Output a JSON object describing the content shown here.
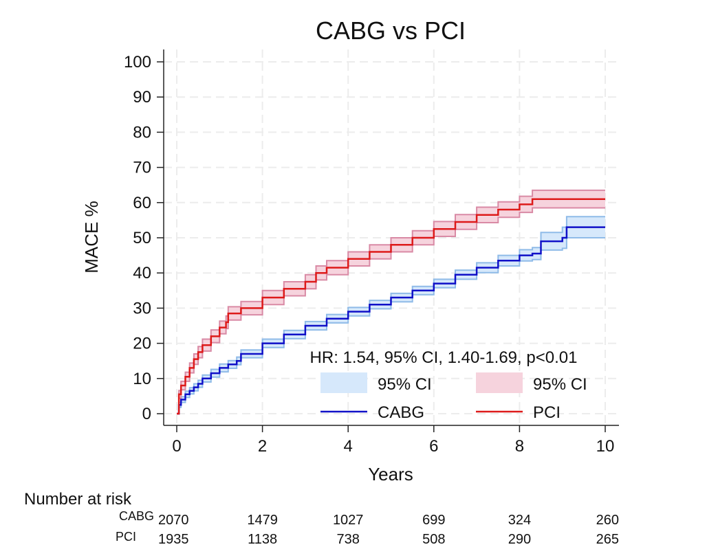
{
  "chart_data": {
    "type": "kaplan-meier",
    "title": "CABG vs PCI",
    "xlabel": "Years",
    "ylabel": "MACE %",
    "xlim": [
      0,
      10
    ],
    "ylim": [
      0,
      100
    ],
    "x_ticks": [
      0,
      2,
      4,
      6,
      8,
      10
    ],
    "y_ticks": [
      0,
      10,
      20,
      30,
      40,
      50,
      60,
      70,
      80,
      90,
      100
    ],
    "grid": true,
    "annotation": "HR: 1.54, 95% CI, 1.40-1.69, p<0.01",
    "legend": {
      "position": "bottom-right",
      "entries": [
        {
          "label": "95% CI",
          "kind": "band",
          "color": "#d6e8fb"
        },
        {
          "label": "95% CI",
          "kind": "band",
          "color": "#f6d3dd"
        },
        {
          "label": "CABG",
          "kind": "line",
          "color": "#1010c8"
        },
        {
          "label": "PCI",
          "kind": "line",
          "color": "#dd1a1a"
        }
      ]
    },
    "series": [
      {
        "name": "CABG",
        "color": "#1010c8",
        "band_color": "#d6e8fb",
        "band_edge_color": "#8fbbe8",
        "x": [
          0,
          0.05,
          0.1,
          0.2,
          0.3,
          0.4,
          0.5,
          0.6,
          0.8,
          1.0,
          1.2,
          1.4,
          1.5,
          2.0,
          2.5,
          3.0,
          3.5,
          4.0,
          4.5,
          5.0,
          5.5,
          6.0,
          6.5,
          7.0,
          7.5,
          8.0,
          8.3,
          8.5,
          9.0,
          9.1,
          10.0
        ],
        "y": [
          0,
          2.5,
          4,
          5.5,
          6.5,
          7.5,
          8.5,
          10,
          11.5,
          13,
          14,
          15,
          17,
          20,
          22.5,
          25,
          27,
          29,
          31,
          33,
          35,
          37,
          39.5,
          41.5,
          43.5,
          45,
          45.5,
          49,
          50,
          53,
          53
        ],
        "ci_low": [
          0,
          1.8,
          3.2,
          4.6,
          5.6,
          6.5,
          7.5,
          9,
          10.4,
          11.9,
          12.9,
          13.9,
          15.9,
          18.8,
          21.3,
          23.8,
          25.8,
          27.8,
          29.8,
          31.8,
          33.8,
          35.8,
          38.2,
          40.1,
          42,
          43.4,
          43.8,
          46.5,
          47,
          50,
          50
        ],
        "ci_high": [
          0,
          3.2,
          4.8,
          6.4,
          7.4,
          8.5,
          9.5,
          11,
          12.6,
          14.1,
          15.1,
          16.1,
          18.1,
          21.2,
          23.7,
          26.2,
          28.2,
          30.2,
          32.2,
          34.2,
          36.2,
          38.2,
          40.8,
          42.9,
          45,
          46.6,
          47.2,
          51.5,
          53,
          56,
          56
        ]
      },
      {
        "name": "PCI",
        "color": "#dd1a1a",
        "band_color": "#f6d3dd",
        "band_edge_color": "#d98aa5",
        "x": [
          0,
          0.05,
          0.1,
          0.2,
          0.3,
          0.4,
          0.5,
          0.6,
          0.8,
          1.0,
          1.15,
          1.2,
          1.5,
          2.0,
          2.5,
          3.0,
          3.25,
          3.5,
          4.0,
          4.5,
          5.0,
          5.5,
          6.0,
          6.5,
          7.0,
          7.5,
          8.0,
          8.3,
          10.0
        ],
        "y": [
          0,
          5.5,
          8,
          10.5,
          13,
          15.5,
          17.5,
          19.5,
          22,
          24.5,
          26,
          28.5,
          30,
          33,
          35.5,
          37.5,
          40,
          41.5,
          44,
          46,
          48,
          50,
          52.5,
          54.5,
          56.5,
          58,
          59.5,
          61,
          61
        ],
        "ci_low": [
          0,
          4.4,
          6.8,
          9.2,
          11.6,
          14.0,
          15.9,
          17.8,
          20.2,
          22.7,
          24.2,
          26.6,
          28.1,
          31.0,
          33.5,
          35.5,
          38.0,
          39.5,
          42.0,
          44.0,
          46.0,
          48.0,
          50.4,
          52.4,
          54.3,
          55.8,
          57.2,
          58.5,
          58.5
        ],
        "ci_high": [
          0,
          6.6,
          9.2,
          11.8,
          14.4,
          17.0,
          19.1,
          21.2,
          23.8,
          26.3,
          27.8,
          30.4,
          31.9,
          35.0,
          37.5,
          39.5,
          42.0,
          43.5,
          46.0,
          48.0,
          50.0,
          52.0,
          54.6,
          56.6,
          58.7,
          60.2,
          61.8,
          63.5,
          63.5
        ]
      }
    ],
    "risk_table": {
      "title": "Number at risk",
      "times": [
        0,
        2,
        4,
        6,
        8,
        10
      ],
      "rows": [
        {
          "label": "CABG",
          "values": [
            "2070",
            "1479",
            "1027",
            "699",
            "324",
            "260"
          ]
        },
        {
          "label": "PCI",
          "values": [
            "1935",
            "1138",
            "738",
            "508",
            "290",
            "265"
          ]
        }
      ]
    }
  }
}
